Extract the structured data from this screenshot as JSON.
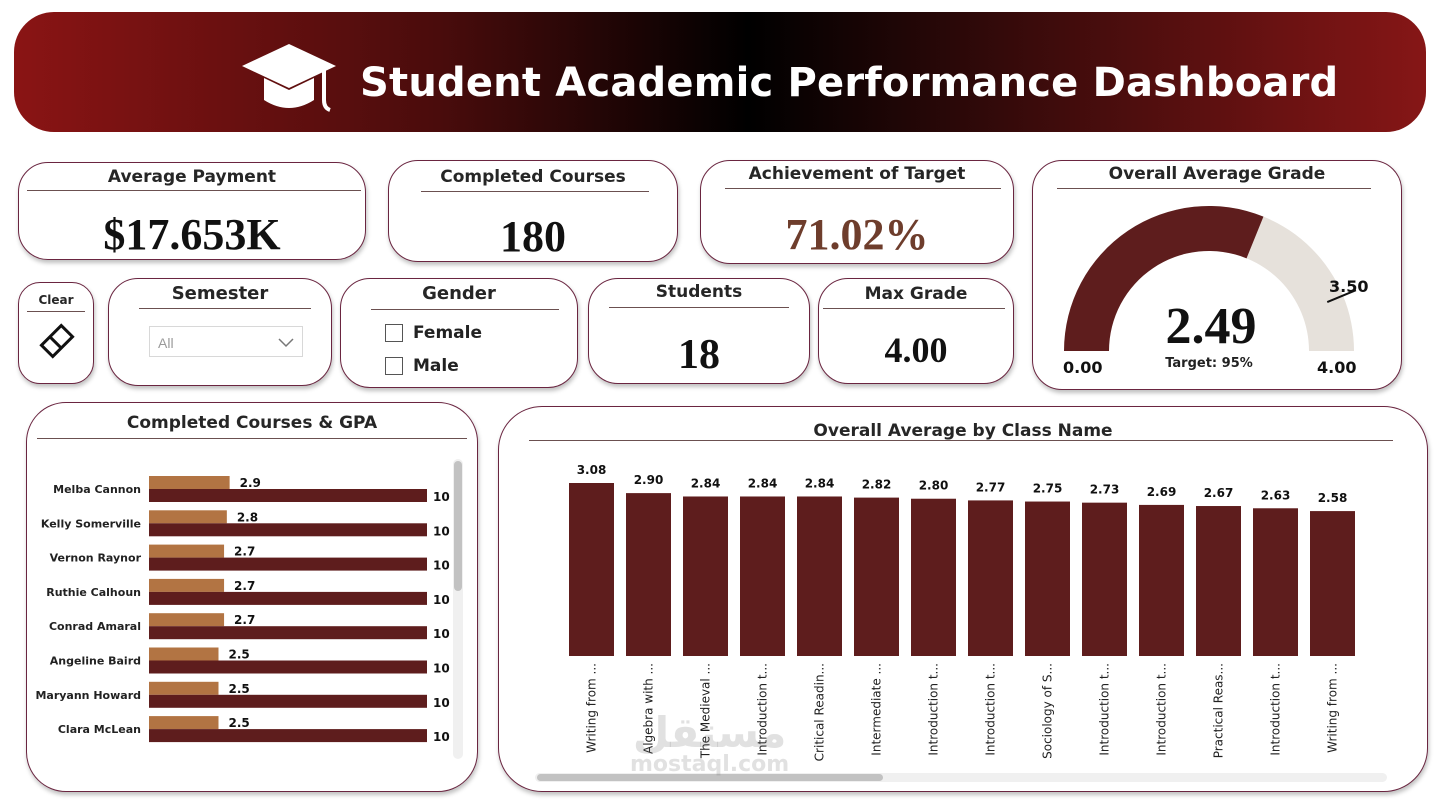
{
  "header": {
    "title": "Student Academic Performance Dashboard",
    "icon": "graduation-cap-icon"
  },
  "kpis": {
    "average_payment": {
      "label": "Average Payment",
      "value": "$17.653K"
    },
    "completed_courses": {
      "label": "Completed Courses",
      "value": "180"
    },
    "achievement": {
      "label": "Achievement of Target",
      "value": "71.02%"
    },
    "students": {
      "label": "Students",
      "value": "18"
    },
    "max_grade": {
      "label": "Max Grade",
      "value": "4.00"
    }
  },
  "gauge": {
    "label": "Overall Average Grade",
    "value": 2.49,
    "value_text": "2.49",
    "min": 0,
    "max": 4,
    "min_text": "0.00",
    "max_text": "4.00",
    "target": 3.5,
    "target_text": "3.50",
    "target_caption": "Target: 95%"
  },
  "filters": {
    "clear": {
      "label": "Clear",
      "icon": "eraser-icon"
    },
    "semester": {
      "label": "Semester",
      "selected": "All"
    },
    "gender": {
      "label": "Gender",
      "options": [
        "Female",
        "Male"
      ]
    }
  },
  "colors": {
    "dark": "#5e1d1d",
    "light": "#b27443",
    "gauge_track": "#e6e1db",
    "achievement": "#6e3d2c"
  },
  "chart_data": [
    {
      "type": "bar",
      "orientation": "horizontal",
      "title": "Completed Courses & GPA",
      "categories": [
        "Melba Cannon",
        "Kelly Somerville",
        "Vernon Raynor",
        "Ruthie Calhoun",
        "Conrad Amaral",
        "Angeline Baird",
        "Maryann Howard",
        "Clara McLean"
      ],
      "series": [
        {
          "values": [
            2.9,
            2.8,
            2.7,
            2.7,
            2.7,
            2.5,
            2.5,
            2.5
          ],
          "labels": [
            "2.9",
            "2.8",
            "2.7",
            "2.7",
            "2.7",
            "2.5",
            "2.5",
            "2.5"
          ]
        },
        {
          "values": [
            10,
            10,
            10,
            10,
            10,
            10,
            10,
            10
          ],
          "labels": [
            "10",
            "10",
            "10",
            "10",
            "10",
            "10",
            "10",
            "10"
          ]
        }
      ],
      "legend": "none"
    },
    {
      "type": "bar",
      "title": "Overall Average by Class Name",
      "categories": [
        "Writing from ...",
        "Algebra with ...",
        "The Medieval ...",
        "Introduction t...",
        "Critical Readin...",
        "Intermediate ...",
        "Introduction t...",
        "Introduction t...",
        "Sociology of S...",
        "Introduction t...",
        "Introduction t...",
        "Practical Reas...",
        "Introduction t...",
        "Writing from ..."
      ],
      "values": [
        3.08,
        2.9,
        2.84,
        2.84,
        2.84,
        2.82,
        2.8,
        2.77,
        2.75,
        2.73,
        2.69,
        2.67,
        2.63,
        2.58
      ],
      "value_labels": [
        "3.08",
        "2.90",
        "2.84",
        "2.84",
        "2.84",
        "2.82",
        "2.80",
        "2.77",
        "2.75",
        "2.73",
        "2.69",
        "2.67",
        "2.63",
        "2.58"
      ],
      "ylim": [
        0,
        3.08
      ],
      "grid": false,
      "legend": "none"
    }
  ],
  "watermark": {
    "arabic": "مستقل",
    "latin": "mostaql.com"
  }
}
